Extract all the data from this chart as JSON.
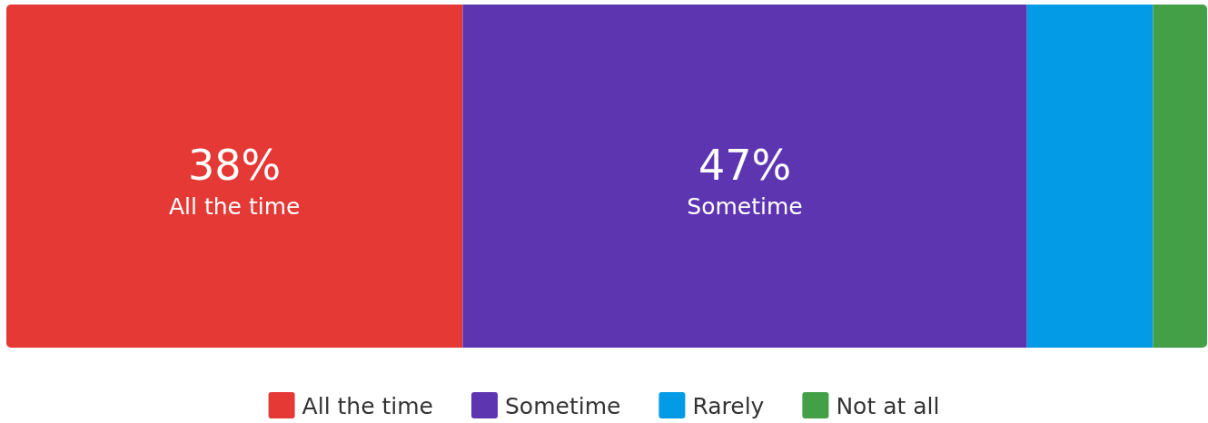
{
  "chart_data": {
    "type": "bar",
    "stacked": true,
    "orientation": "horizontal",
    "categories": [
      null
    ],
    "xlim": [
      0,
      100
    ],
    "tick_labels": false,
    "legend": "bottom",
    "series": [
      {
        "name": "All the time",
        "color": "#e53935",
        "values": [
          38
        ],
        "value_labels": [
          "38%"
        ]
      },
      {
        "name": "Sometime",
        "color": "#5e35b1",
        "values": [
          47
        ],
        "value_labels": [
          "47%"
        ]
      },
      {
        "name": "Rarely",
        "color": "#039be5",
        "values": [
          10.5
        ],
        "value_labels": [
          null
        ]
      },
      {
        "name": "Not at all",
        "color": "#43a047",
        "values": [
          4.5
        ],
        "value_labels": [
          null
        ]
      }
    ]
  }
}
